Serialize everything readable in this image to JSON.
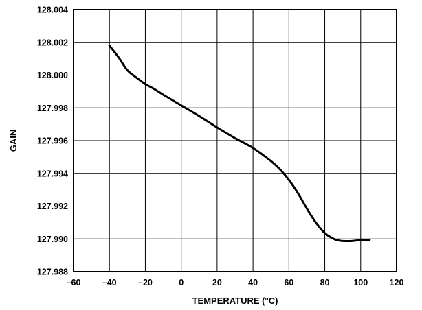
{
  "chart_data": {
    "type": "line",
    "title": "",
    "xlabel": "TEMPERATURE (°C)",
    "ylabel": "GAIN",
    "xlim": [
      -60,
      120
    ],
    "ylim": [
      127.988,
      128.004
    ],
    "x_ticks": [
      -60,
      -40,
      -20,
      0,
      20,
      40,
      60,
      80,
      100,
      120
    ],
    "x_tick_labels": [
      "–60",
      "–40",
      "–20",
      "0",
      "20",
      "40",
      "60",
      "80",
      "100",
      "120"
    ],
    "y_ticks": [
      127.988,
      127.99,
      127.992,
      127.994,
      127.996,
      127.998,
      128.0,
      128.002,
      128.004
    ],
    "y_tick_labels": [
      "127.988",
      "127.990",
      "127.992",
      "127.994",
      "127.996",
      "127.998",
      "128.000",
      "128.002",
      "128.004"
    ],
    "grid": true,
    "series": [
      {
        "color": "#000000",
        "x": [
          -40,
          -35,
          -30,
          -25,
          -20,
          -15,
          -10,
          0,
          10,
          20,
          30,
          40,
          50,
          55,
          60,
          65,
          70,
          75,
          80,
          85,
          88,
          90,
          95,
          100,
          105
        ],
        "y": [
          128.0018,
          128.0011,
          128.0003,
          127.99985,
          127.99945,
          127.99915,
          127.9988,
          127.99815,
          127.9975,
          127.9968,
          127.99615,
          127.99555,
          127.99475,
          127.99425,
          127.9936,
          127.9928,
          127.99185,
          127.991,
          127.99035,
          127.99,
          127.9899,
          127.98987,
          127.98987,
          127.98993,
          127.98995
        ]
      }
    ]
  }
}
